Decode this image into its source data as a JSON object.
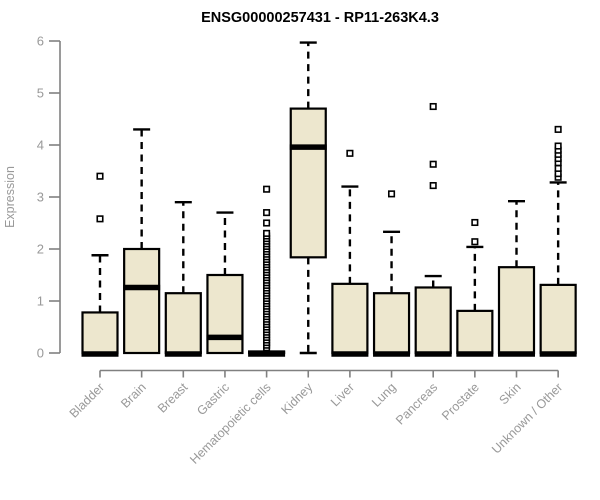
{
  "chart_data": {
    "type": "boxplot",
    "title": "ENSG00000257431 - RP11-263K4.3",
    "ylabel": "Expression",
    "xlabel": "",
    "ylim": [
      0,
      6
    ],
    "yticks": [
      0,
      1,
      2,
      3,
      4,
      5,
      6
    ],
    "grid": false,
    "legend": "none",
    "categories": [
      "Bladder",
      "Brain",
      "Breast",
      "Gastric",
      "Hematopoietic cells",
      "Kidney",
      "Liver",
      "Lung",
      "Pancreas",
      "Prostate",
      "Skin",
      "Unknown / Other"
    ],
    "boxes": [
      {
        "category": "Bladder",
        "q1": 0,
        "median": 0,
        "q3": 0.78,
        "whisker_low": 0,
        "whisker_high": 1.88,
        "outliers": [
          2.58,
          3.4
        ]
      },
      {
        "category": "Brain",
        "q1": 0,
        "median": 1.26,
        "q3": 2.0,
        "whisker_low": 0,
        "whisker_high": 4.3,
        "outliers": []
      },
      {
        "category": "Breast",
        "q1": 0,
        "median": 0,
        "q3": 1.15,
        "whisker_low": 0,
        "whisker_high": 2.9,
        "outliers": []
      },
      {
        "category": "Gastric",
        "q1": 0,
        "median": 0.3,
        "q3": 1.5,
        "whisker_low": 0,
        "whisker_high": 2.7,
        "outliers": []
      },
      {
        "category": "Hematopoietic cells",
        "q1": 0,
        "median": 0,
        "q3": 0.03,
        "whisker_low": 0,
        "whisker_high": 0.03,
        "outliers": [
          0.1,
          0.15,
          0.2,
          0.25,
          0.3,
          0.35,
          0.4,
          0.45,
          0.5,
          0.55,
          0.6,
          0.65,
          0.7,
          0.75,
          0.8,
          0.85,
          0.9,
          0.95,
          1.0,
          1.05,
          1.1,
          1.15,
          1.2,
          1.25,
          1.3,
          1.35,
          1.4,
          1.45,
          1.5,
          1.55,
          1.6,
          1.65,
          1.7,
          1.75,
          1.8,
          1.85,
          1.9,
          1.95,
          2.0,
          2.05,
          2.1,
          2.15,
          2.2,
          2.25,
          2.3,
          2.5,
          2.7,
          3.15
        ]
      },
      {
        "category": "Kidney",
        "q1": 1.84,
        "median": 3.96,
        "q3": 4.7,
        "whisker_low": 0,
        "whisker_high": 5.97,
        "outliers": []
      },
      {
        "category": "Liver",
        "q1": 0,
        "median": 0,
        "q3": 1.33,
        "whisker_low": 0,
        "whisker_high": 3.2,
        "outliers": [
          3.84
        ]
      },
      {
        "category": "Lung",
        "q1": 0,
        "median": 0,
        "q3": 1.15,
        "whisker_low": 0,
        "whisker_high": 2.33,
        "outliers": [
          3.06
        ]
      },
      {
        "category": "Pancreas",
        "q1": 0,
        "median": 0,
        "q3": 1.26,
        "whisker_low": 0,
        "whisker_high": 1.48,
        "outliers": [
          3.22,
          3.63,
          4.74
        ]
      },
      {
        "category": "Prostate",
        "q1": 0,
        "median": 0,
        "q3": 0.81,
        "whisker_low": 0,
        "whisker_high": 2.04,
        "outliers": [
          2.14,
          2.51
        ]
      },
      {
        "category": "Skin",
        "q1": 0,
        "median": 0,
        "q3": 1.65,
        "whisker_low": 0,
        "whisker_high": 2.92,
        "outliers": []
      },
      {
        "category": "Unknown / Other",
        "q1": 0,
        "median": 0,
        "q3": 1.31,
        "whisker_low": 0,
        "whisker_high": 3.28,
        "outliers": [
          3.38,
          3.45,
          3.55,
          3.66,
          3.74,
          3.82,
          3.9,
          3.98,
          4.3
        ]
      }
    ],
    "colors": {
      "box_fill": "#ede7ce",
      "box_border": "#000000",
      "median": "#000000",
      "whisker": "#000000",
      "axis": "#808080",
      "axis_text": "#999999",
      "title": "#000000",
      "background": "#ffffff"
    }
  }
}
